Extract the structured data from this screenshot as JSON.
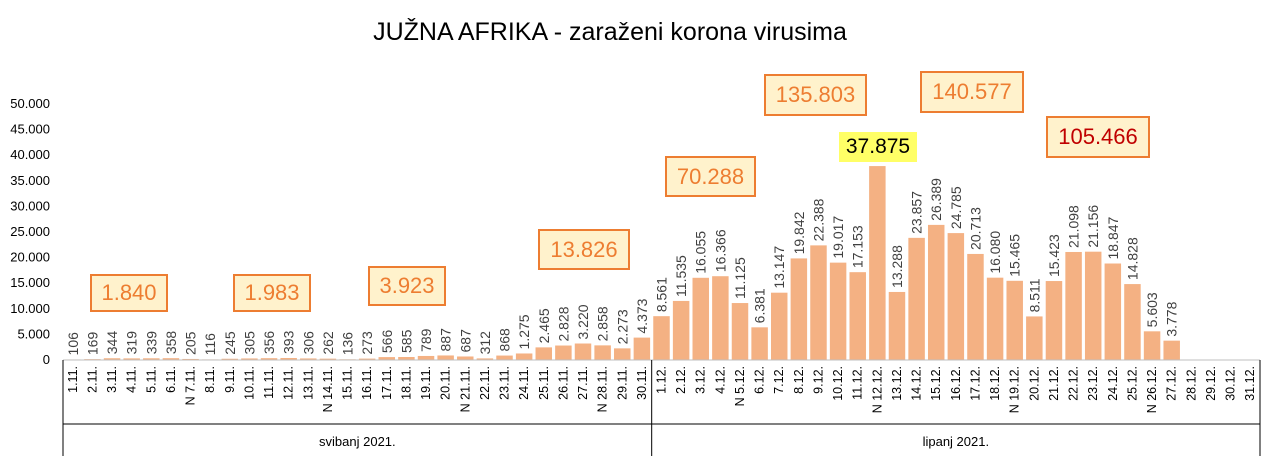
{
  "chart_data": {
    "type": "bar",
    "title": "JUŽNA AFRIKA - zaraženi korona virusima",
    "xlabel": "",
    "ylabel": "",
    "ylim": [
      0,
      50000
    ],
    "yticks": [
      "0",
      "5.000",
      "10.000",
      "15.000",
      "20.000",
      "25.000",
      "30.000",
      "35.000",
      "40.000",
      "45.000",
      "50.000"
    ],
    "bar_color": "#f4b183",
    "categories": [
      "1.11.",
      "2.11.",
      "3.11.",
      "4.11.",
      "5.11.",
      "6.11.",
      "N 7.11.",
      "8.11.",
      "9.11.",
      "10.11.",
      "11.11.",
      "12.11.",
      "13.11.",
      "N 14.11.",
      "15.11.",
      "16.11.",
      "17.11.",
      "18.11.",
      "19.11.",
      "20.11.",
      "N 21.11.",
      "22.11.",
      "23.11.",
      "24.11.",
      "25.11.",
      "26.11.",
      "27.11.",
      "N 28.11.",
      "29.11.",
      "30.11.",
      "1.12.",
      "2.12.",
      "3.12.",
      "4.12.",
      "N 5.12.",
      "6.12.",
      "7.12.",
      "8.12.",
      "9.12.",
      "10.12.",
      "11.12.",
      "N 12.12.",
      "13.12.",
      "14.12.",
      "15.12.",
      "16.12.",
      "17.12.",
      "18.12.",
      "N 19.12.",
      "20.12.",
      "21.12.",
      "22.12.",
      "23.12.",
      "24.12.",
      "25.12.",
      "N 26.12.",
      "27.12.",
      "28.12.",
      "29.12.",
      "30.12.",
      "31.12."
    ],
    "values": [
      106,
      169,
      344,
      319,
      339,
      358,
      205,
      116,
      245,
      305,
      356,
      393,
      306,
      262,
      136,
      273,
      566,
      585,
      789,
      887,
      687,
      312,
      868,
      1275,
      2465,
      2828,
      3220,
      2858,
      2273,
      4373,
      8561,
      11535,
      16055,
      16366,
      11125,
      6381,
      13147,
      19842,
      22388,
      19017,
      17153,
      37875,
      13288,
      23857,
      26389,
      24785,
      20713,
      16080,
      15465,
      8511,
      15423,
      21098,
      21156,
      18847,
      14828,
      5603,
      3778,
      null,
      null,
      null,
      null
    ],
    "data_labels": [
      "106",
      "169",
      "344",
      "319",
      "339",
      "358",
      "205",
      "116",
      "245",
      "305",
      "356",
      "393",
      "306",
      "262",
      "136",
      "273",
      "566",
      "585",
      "789",
      "887",
      "687",
      "312",
      "868",
      "1.275",
      "2.465",
      "2.828",
      "3.220",
      "2.858",
      "2.273",
      "4.373",
      "8.561",
      "11.535",
      "16.055",
      "16.366",
      "11.125",
      "6.381",
      "13.147",
      "19.842",
      "22.388",
      "19.017",
      "17.153",
      "",
      "13.288",
      "23.857",
      "26.389",
      "24.785",
      "20.713",
      "16.080",
      "15.465",
      "8.511",
      "15.423",
      "21.098",
      "21.156",
      "18.847",
      "14.828",
      "5.603",
      "3.778",
      "",
      "",
      "",
      ""
    ],
    "groups": [
      {
        "label": "svibanj 2021.",
        "start": 0,
        "count": 30
      },
      {
        "label": "lipanj 2021.",
        "start": 30,
        "count": 31
      }
    ],
    "annotations": {
      "weekly_totals": [
        "1.840",
        "1.983",
        "3.923",
        "13.826",
        "70.288",
        "135.803",
        "140.577",
        "105.466"
      ],
      "peak": "37.875"
    }
  }
}
